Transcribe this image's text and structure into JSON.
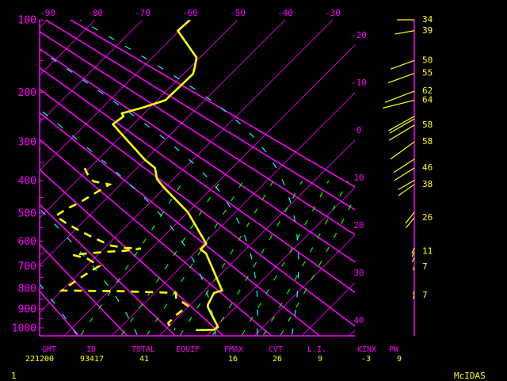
{
  "chart_data": {
    "type": "skew-t",
    "pressure_axis": {
      "range": [
        100,
        1000
      ],
      "labels": [
        "100",
        "200",
        "300",
        "400",
        "500",
        "600",
        "700",
        "800",
        "900",
        "1000"
      ],
      "minor_tick_step": 50
    },
    "isotherm_labels_top": [
      "-90",
      "-80",
      "-70",
      "-60",
      "-50",
      "-40",
      "-30"
    ],
    "isotherm_labels_right": [
      "-20",
      "-10",
      "0",
      "10",
      "20",
      "30",
      "40"
    ],
    "isotherm_step_c": 10,
    "dry_adiabats_theta_c": [
      -20,
      -10,
      0,
      10,
      20,
      30,
      40,
      50,
      60,
      70,
      80,
      90
    ],
    "mixing_ratio_lines_gkg": [
      1,
      2,
      3,
      5,
      8,
      12,
      16,
      20
    ],
    "moist_adiabats_c": [
      -30,
      -20,
      -7,
      10,
      19,
      26.5
    ],
    "temperature": [
      [
        100,
        -60
      ],
      [
        112,
        -60.3
      ],
      [
        146,
        -50.7
      ],
      [
        160,
        -49
      ],
      [
        170,
        -48
      ],
      [
        214,
        -48.3
      ],
      [
        228,
        -51.5
      ],
      [
        239,
        -54.7
      ],
      [
        245,
        -53.7
      ],
      [
        261,
        -54.3
      ],
      [
        280,
        -50.8
      ],
      [
        344,
        -40
      ],
      [
        365,
        -36.2
      ],
      [
        395,
        -33.5
      ],
      [
        420,
        -30.2
      ],
      [
        497,
        -20
      ],
      [
        610,
        -9.5
      ],
      [
        632,
        -9.5
      ],
      [
        648,
        -7.5
      ],
      [
        810,
        3.7
      ],
      [
        821,
        2.5
      ],
      [
        879,
        3.7
      ],
      [
        891,
        4.2
      ],
      [
        995,
        10.5
      ],
      [
        1010,
        10.2
      ],
      [
        1012,
        6.5
      ]
    ],
    "dewpoint": [
      [
        365,
        -51
      ],
      [
        390,
        -48.2
      ],
      [
        402,
        -46.3
      ],
      [
        411,
        -42.3
      ],
      [
        425,
        -43
      ],
      [
        466,
        -44.8
      ],
      [
        486,
        -46.2
      ],
      [
        510,
        -47
      ],
      [
        532,
        -43.7
      ],
      [
        561,
        -39
      ],
      [
        590,
        -34
      ],
      [
        617,
        -29.2
      ],
      [
        626,
        -25.7
      ],
      [
        629,
        -22.2
      ],
      [
        638,
        -25.2
      ],
      [
        641,
        -28.3
      ],
      [
        648,
        -32.5
      ],
      [
        654,
        -35.2
      ],
      [
        670,
        -31.3
      ],
      [
        700,
        -27.3
      ],
      [
        728,
        -28.2
      ],
      [
        773,
        -29.3
      ],
      [
        810,
        -30
      ],
      [
        813,
        -17.8
      ],
      [
        821,
        -5.5
      ],
      [
        844,
        -4.5
      ],
      [
        884,
        -0.3
      ],
      [
        932,
        -0.8
      ],
      [
        974,
        -0.8
      ],
      [
        1000,
        0.7
      ],
      [
        1008,
        2
      ]
    ],
    "winds": [
      {
        "p": 100,
        "dir": 270,
        "speed": 34,
        "label": "34"
      },
      {
        "p": 112,
        "dir": 260,
        "speed": 39,
        "label": "39"
      },
      {
        "p": 150,
        "dir": 250,
        "speed": 50,
        "label": "50"
      },
      {
        "p": 169,
        "dir": 250,
        "speed": 55,
        "label": "55"
      },
      {
        "p": 198,
        "dir": 249,
        "speed": 62,
        "label": "62"
      },
      {
        "p": 214,
        "dir": 256,
        "speed": 64,
        "label": "64"
      },
      {
        "p": 245,
        "dir": 241,
        "speed": 58
      },
      {
        "p": 250,
        "dir": 240,
        "speed": 56
      },
      {
        "p": 263,
        "dir": 239,
        "speed": 58,
        "label": "58"
      },
      {
        "p": 300,
        "dir": 234,
        "speed": 58,
        "label": "58"
      },
      {
        "p": 342,
        "dir": 237,
        "speed": 48
      },
      {
        "p": 365,
        "dir": 238,
        "speed": 46,
        "label": "46"
      },
      {
        "p": 399,
        "dir": 240,
        "speed": 37
      },
      {
        "p": 411,
        "dir": 235,
        "speed": 38,
        "label": "38"
      },
      {
        "p": 497,
        "dir": 218,
        "speed": 28
      },
      {
        "p": 516,
        "dir": 220,
        "speed": 26,
        "label": "26"
      },
      {
        "p": 626,
        "dir": 203,
        "speed": 12
      },
      {
        "p": 641,
        "dir": 203,
        "speed": 11,
        "label": "11"
      },
      {
        "p": 664,
        "dir": 203,
        "speed": 10
      },
      {
        "p": 704,
        "dir": 200,
        "speed": 7,
        "label": "7"
      },
      {
        "p": 813,
        "dir": 200,
        "speed": 7
      },
      {
        "p": 833,
        "dir": 200,
        "speed": 7,
        "label": "7"
      }
    ],
    "colors": {
      "background": "#000000",
      "axes": "#ff00ff",
      "isotherms": "#d000d0",
      "dry_adiabats": "#ff00ff",
      "mixing_ratio": "#00ff00",
      "moist_adiabats": "#00ffff",
      "temperature": "#ffff00",
      "dewpoint": "#ffff00",
      "winds": "#ffff00"
    }
  },
  "footer": {
    "headers": {
      "gmt": "GMT",
      "id": "ID",
      "total": "TOTAL",
      "equip": "EQUIP",
      "fmax": "FMAX",
      "cvt": "CVT",
      "li": "L.I.",
      "kinx": "KINX",
      "pw": "PW"
    },
    "values": {
      "gmt": "221200",
      "id": "93417",
      "total": "41",
      "fmax": "16",
      "cvt": "26",
      "li": "9",
      "kinx": "-3",
      "pw": "9"
    },
    "frame_number": "1",
    "brand": "McIDAS"
  }
}
